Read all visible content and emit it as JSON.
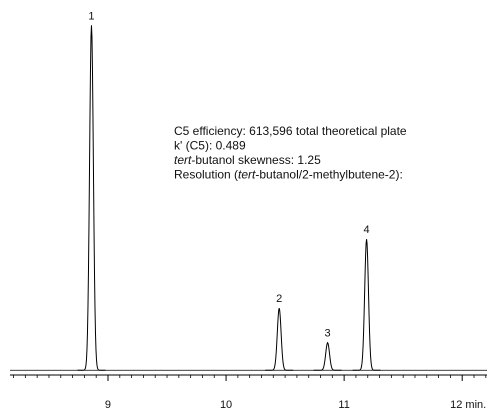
{
  "chart_data": {
    "type": "chromatogram",
    "peaks": [
      {
        "label": "1",
        "x": 8.86,
        "height": 100
      },
      {
        "label": "2",
        "x": 10.45,
        "height": 18
      },
      {
        "label": "3",
        "x": 10.86,
        "height": 8
      },
      {
        "label": "4",
        "x": 11.19,
        "height": 38
      }
    ],
    "annotations": [
      [
        {
          "text": "C5 efficiency: 613,596 total theoretical plate"
        }
      ],
      [
        {
          "text": "k' (C5): 0.489"
        }
      ],
      [
        {
          "text": "tert",
          "italic": true
        },
        {
          "text": "-butanol skewness: 1.25"
        }
      ],
      [
        {
          "text": "Resolution ("
        },
        {
          "text": "tert",
          "italic": true
        },
        {
          "text": "-butanol/2-methylbutene-2):"
        }
      ]
    ],
    "xlim": [
      8.17,
      12.21
    ],
    "ylim": [
      -0.5,
      105
    ],
    "xticks": [
      9,
      10,
      11,
      {
        "value": 12,
        "label": "12 min."
      }
    ],
    "xminor_ticks": [
      8.2,
      8.3,
      8.4,
      8.5,
      8.6,
      8.7,
      8.8,
      8.9,
      9.1,
      9.2,
      9.3,
      9.4,
      9.5,
      9.6,
      9.7,
      9.8,
      9.9,
      10.1,
      10.2,
      10.3,
      10.4,
      10.5,
      10.6,
      10.7,
      10.8,
      10.9,
      11.1,
      11.2,
      11.3,
      11.4,
      11.5,
      11.6,
      11.7,
      11.8,
      11.9,
      12.1,
      12.2
    ],
    "color": "#000000"
  }
}
